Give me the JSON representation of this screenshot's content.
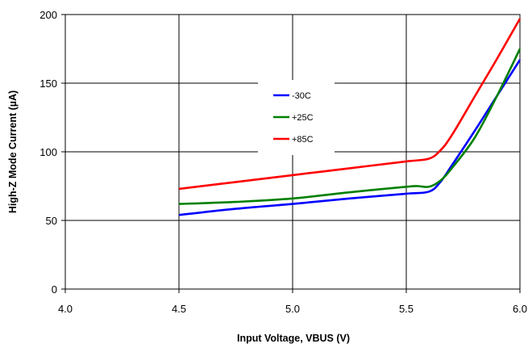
{
  "chart_data": {
    "type": "line",
    "title": "",
    "xlabel": "Input Voltage, VBUS (V)",
    "ylabel": "High-Z Mode Current (µA)",
    "xlim": [
      4.0,
      6.0
    ],
    "ylim": [
      0,
      200
    ],
    "x_ticks": [
      "4.0",
      "4.5",
      "5.0",
      "5.5",
      "6.0"
    ],
    "y_ticks": [
      "0",
      "50",
      "100",
      "150",
      "200"
    ],
    "grid": true,
    "legend_position": "upper-center",
    "series": [
      {
        "name": "-30C",
        "color": "#0000ff",
        "points": [
          [
            4.5,
            54
          ],
          [
            4.75,
            58.5
          ],
          [
            5.0,
            62
          ],
          [
            5.25,
            66
          ],
          [
            5.5,
            69.5
          ],
          [
            5.6,
            71
          ],
          [
            5.65,
            78
          ],
          [
            5.7,
            90
          ],
          [
            5.8,
            115
          ],
          [
            5.9,
            141
          ],
          [
            6.0,
            167
          ]
        ]
      },
      {
        "name": "+25C",
        "color": "#008000",
        "points": [
          [
            4.5,
            62
          ],
          [
            4.75,
            63.5
          ],
          [
            5.0,
            66
          ],
          [
            5.25,
            70.5
          ],
          [
            5.5,
            74.5
          ],
          [
            5.55,
            75
          ],
          [
            5.6,
            74.5
          ],
          [
            5.65,
            79
          ],
          [
            5.7,
            88
          ],
          [
            5.8,
            110
          ],
          [
            5.9,
            141
          ],
          [
            6.0,
            175
          ]
        ]
      },
      {
        "name": "+85C",
        "color": "#ff0000",
        "points": [
          [
            4.5,
            73
          ],
          [
            4.75,
            78
          ],
          [
            5.0,
            83
          ],
          [
            5.25,
            88
          ],
          [
            5.5,
            93
          ],
          [
            5.6,
            95
          ],
          [
            5.65,
            101
          ],
          [
            5.7,
            112
          ],
          [
            5.8,
            140
          ],
          [
            5.9,
            168
          ],
          [
            6.0,
            197
          ]
        ]
      }
    ]
  }
}
